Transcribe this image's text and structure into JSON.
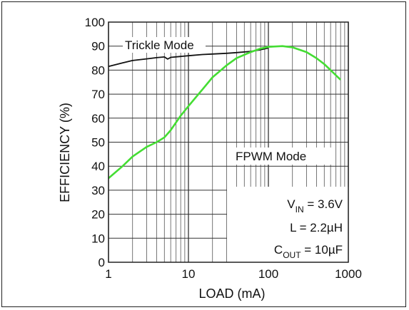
{
  "chart_data": {
    "type": "line",
    "xlabel": "LOAD (mA)",
    "ylabel": "EFFICIENCY (%)",
    "x_scale": "log",
    "xlim": [
      1,
      1000
    ],
    "ylim": [
      0,
      100
    ],
    "grid": true,
    "x_ticks": [
      1,
      10,
      100,
      1000
    ],
    "x_tick_labels": [
      "1",
      "10",
      "100",
      "1000"
    ],
    "y_ticks": [
      0,
      10,
      20,
      30,
      40,
      50,
      60,
      70,
      80,
      90,
      100
    ],
    "y_tick_labels": [
      "0",
      "10",
      "20",
      "30",
      "40",
      "50",
      "60",
      "70",
      "80",
      "90",
      "100"
    ],
    "series": [
      {
        "name": "Trickle Mode",
        "color": "#111111",
        "x": [
          1,
          1.5,
          2,
          3,
          4,
          5,
          5.5,
          6,
          8,
          10,
          15,
          20,
          30,
          40,
          60,
          80,
          100
        ],
        "y": [
          81.5,
          83,
          84,
          84.7,
          85.2,
          85.5,
          84.6,
          85.3,
          85.7,
          86,
          86.5,
          86.7,
          87,
          87.3,
          87.8,
          88.5,
          89.2
        ]
      },
      {
        "name": "FPWM Mode",
        "color": "#44dd33",
        "x": [
          1,
          1.5,
          2,
          3,
          4,
          5,
          6,
          8,
          10,
          15,
          20,
          30,
          40,
          60,
          80,
          100,
          150,
          200,
          300,
          400,
          500,
          600,
          800
        ],
        "y": [
          35,
          40,
          44,
          48,
          50,
          52,
          55,
          61,
          65,
          72,
          77,
          82,
          85,
          87.5,
          89,
          89.7,
          90,
          89.5,
          87.5,
          85,
          82.5,
          80,
          76
        ]
      }
    ],
    "annotation": {
      "vin_main": "V",
      "vin_sub": "IN",
      "vin_rest": " = 3.6V",
      "l_line": "L = 2.2µH",
      "cout_main": "C",
      "cout_sub": "OUT",
      "cout_rest": " = 10µF"
    }
  }
}
